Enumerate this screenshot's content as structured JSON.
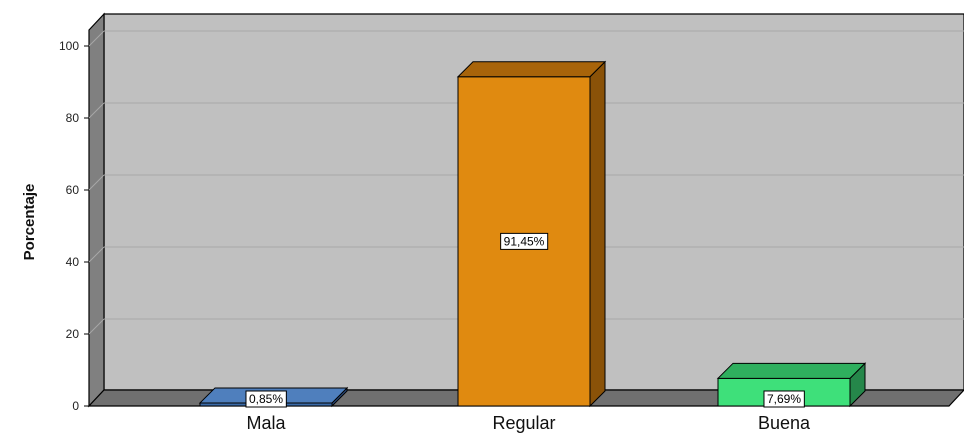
{
  "chart_data": {
    "type": "bar",
    "title": "",
    "xlabel": "",
    "ylabel": "Porcentaje",
    "ylim": [
      0,
      100
    ],
    "yticks": [
      "0",
      "20",
      "40",
      "60",
      "80",
      "100"
    ],
    "grid": true,
    "style": "3d",
    "categories": [
      "Mala",
      "Regular",
      "Buena"
    ],
    "values": [
      0.85,
      91.45,
      7.69
    ],
    "data_labels": [
      "0,85%",
      "91,45%",
      "7,69%"
    ],
    "colors": [
      "#3a6aa8",
      "#e08a10",
      "#3ee07a"
    ],
    "side_colors": [
      "#2a4c7e",
      "#8a5208",
      "#25874a"
    ],
    "top_colors": [
      "#4f7fbd",
      "#a8640a",
      "#2faf5e"
    ],
    "wall_color": "#c0c0c0",
    "floor_color": "#707070"
  }
}
